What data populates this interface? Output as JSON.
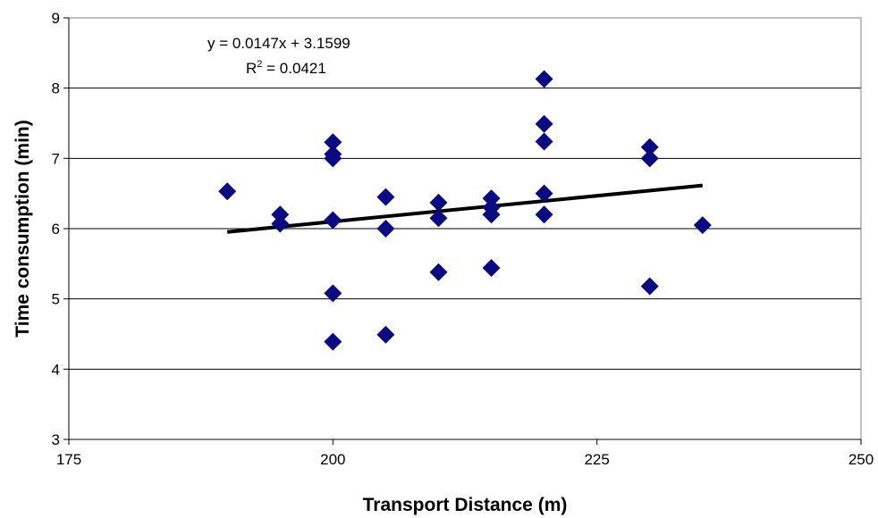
{
  "chart_data": {
    "type": "scatter",
    "title": "",
    "xlabel": "Transport Distance (m)",
    "ylabel": "Time consumption (min)",
    "xlim": [
      175,
      250
    ],
    "ylim": [
      3,
      9
    ],
    "x_ticks": [
      175,
      200,
      225,
      250
    ],
    "y_ticks": [
      3,
      4,
      5,
      6,
      7,
      8,
      9
    ],
    "grid": "horizontal",
    "legend": "none",
    "marker": "diamond",
    "colors": {
      "marker": "#0a0a82",
      "trendline": "#000000",
      "grid": "#000000"
    },
    "points": [
      {
        "x": 190,
        "y": 6.53
      },
      {
        "x": 195,
        "y": 6.2
      },
      {
        "x": 195,
        "y": 6.07
      },
      {
        "x": 200,
        "y": 7.23
      },
      {
        "x": 200,
        "y": 7.06
      },
      {
        "x": 200,
        "y": 7.0
      },
      {
        "x": 200,
        "y": 6.12
      },
      {
        "x": 200,
        "y": 5.08
      },
      {
        "x": 200,
        "y": 4.39
      },
      {
        "x": 205,
        "y": 6.45
      },
      {
        "x": 205,
        "y": 6.0
      },
      {
        "x": 205,
        "y": 4.49
      },
      {
        "x": 210,
        "y": 6.37
      },
      {
        "x": 210,
        "y": 6.15
      },
      {
        "x": 210,
        "y": 5.38
      },
      {
        "x": 215,
        "y": 6.43
      },
      {
        "x": 215,
        "y": 6.3
      },
      {
        "x": 215,
        "y": 6.2
      },
      {
        "x": 215,
        "y": 5.44
      },
      {
        "x": 220,
        "y": 8.13
      },
      {
        "x": 220,
        "y": 7.49
      },
      {
        "x": 220,
        "y": 7.24
      },
      {
        "x": 220,
        "y": 6.5
      },
      {
        "x": 220,
        "y": 6.2
      },
      {
        "x": 230,
        "y": 7.16
      },
      {
        "x": 230,
        "y": 7.0
      },
      {
        "x": 230,
        "y": 5.18
      },
      {
        "x": 235,
        "y": 6.05
      }
    ],
    "trendline": {
      "type": "linear",
      "slope": 0.0147,
      "intercept": 3.1599,
      "x_range": [
        190,
        235
      ],
      "equation": "y = 0.0147x + 3.1599",
      "r2_label": "R",
      "r2_sup": "2",
      "r2_value": " = 0.0421"
    }
  }
}
